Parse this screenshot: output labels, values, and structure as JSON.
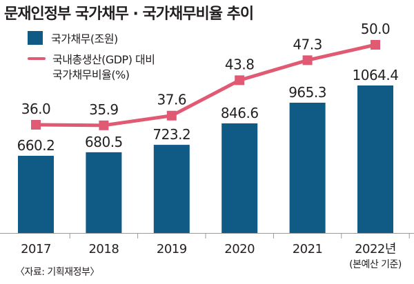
{
  "title": "문재인정부 국가채무 · 국가채무비율 추이",
  "legend": {
    "bar_label": "국가채무(조원)",
    "line_label_1": "국내총생산(GDP) 대비",
    "line_label_2": "국가채무비율(%)"
  },
  "source": "〈자료: 기획재정부〉",
  "colors": {
    "bar": "#0f5b86",
    "line": "#e15a74"
  },
  "chart_data": {
    "type": "bar+line",
    "categories": [
      "2017",
      "2018",
      "2019",
      "2020",
      "2021",
      "2022년"
    ],
    "category_sublabels": [
      "",
      "",
      "",
      "",
      "",
      "(본예산 기준)"
    ],
    "series": [
      {
        "name": "국가채무(조원)",
        "type": "bar",
        "values": [
          660.2,
          680.5,
          723.2,
          846.6,
          965.3,
          1064.4
        ]
      },
      {
        "name": "국내총생산(GDP) 대비 국가채무비율(%)",
        "type": "line",
        "values": [
          36.0,
          35.9,
          37.6,
          43.8,
          47.3,
          50.0
        ]
      }
    ],
    "value_labels_bar": [
      "660.2",
      "680.5",
      "723.2",
      "846.6",
      "965.3",
      "1064.4"
    ],
    "value_labels_line": [
      "36.0",
      "35.9",
      "37.6",
      "43.8",
      "47.3",
      "50.0"
    ]
  }
}
